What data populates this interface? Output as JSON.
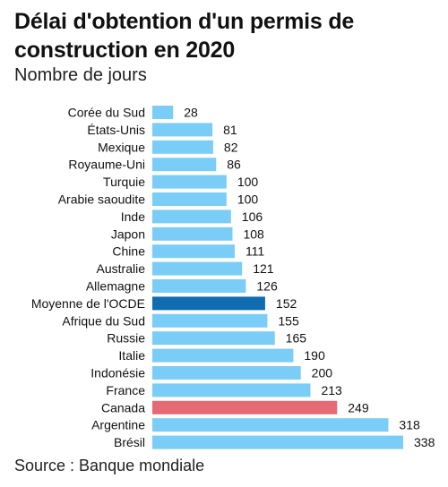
{
  "header": {
    "title": "Délai d'obtention d'un permis de construction en 2020",
    "subtitle": "Nombre de jours"
  },
  "footer": {
    "source": "Source : Banque mondiale"
  },
  "colors": {
    "default_bar": "#79cdf7",
    "oecd_bar": "#0f6cb0",
    "canada_bar": "#e66a73"
  },
  "chart_data": {
    "type": "bar",
    "orientation": "horizontal",
    "title": "Délai d'obtention d'un permis de construction en 2020",
    "subtitle": "Nombre de jours",
    "categories": [
      "Corée du Sud",
      "États-Unis",
      "Mexique",
      "Royaume-Uni",
      "Turquie",
      "Arabie saoudite",
      "Inde",
      "Japon",
      "Chine",
      "Australie",
      "Allemagne",
      "Moyenne de l'OCDE",
      "Afrique du Sud",
      "Russie",
      "Italie",
      "Indonésie",
      "France",
      "Canada",
      "Argentine",
      "Brésil"
    ],
    "values": [
      28,
      81,
      82,
      86,
      100,
      100,
      106,
      108,
      111,
      121,
      126,
      152,
      155,
      165,
      190,
      200,
      213,
      249,
      318,
      338
    ],
    "highlights": {
      "Moyenne de l'OCDE": "#0f6cb0",
      "Canada": "#e66a73"
    },
    "xlim": [
      0,
      338
    ],
    "grid": false,
    "data_labels": true
  }
}
